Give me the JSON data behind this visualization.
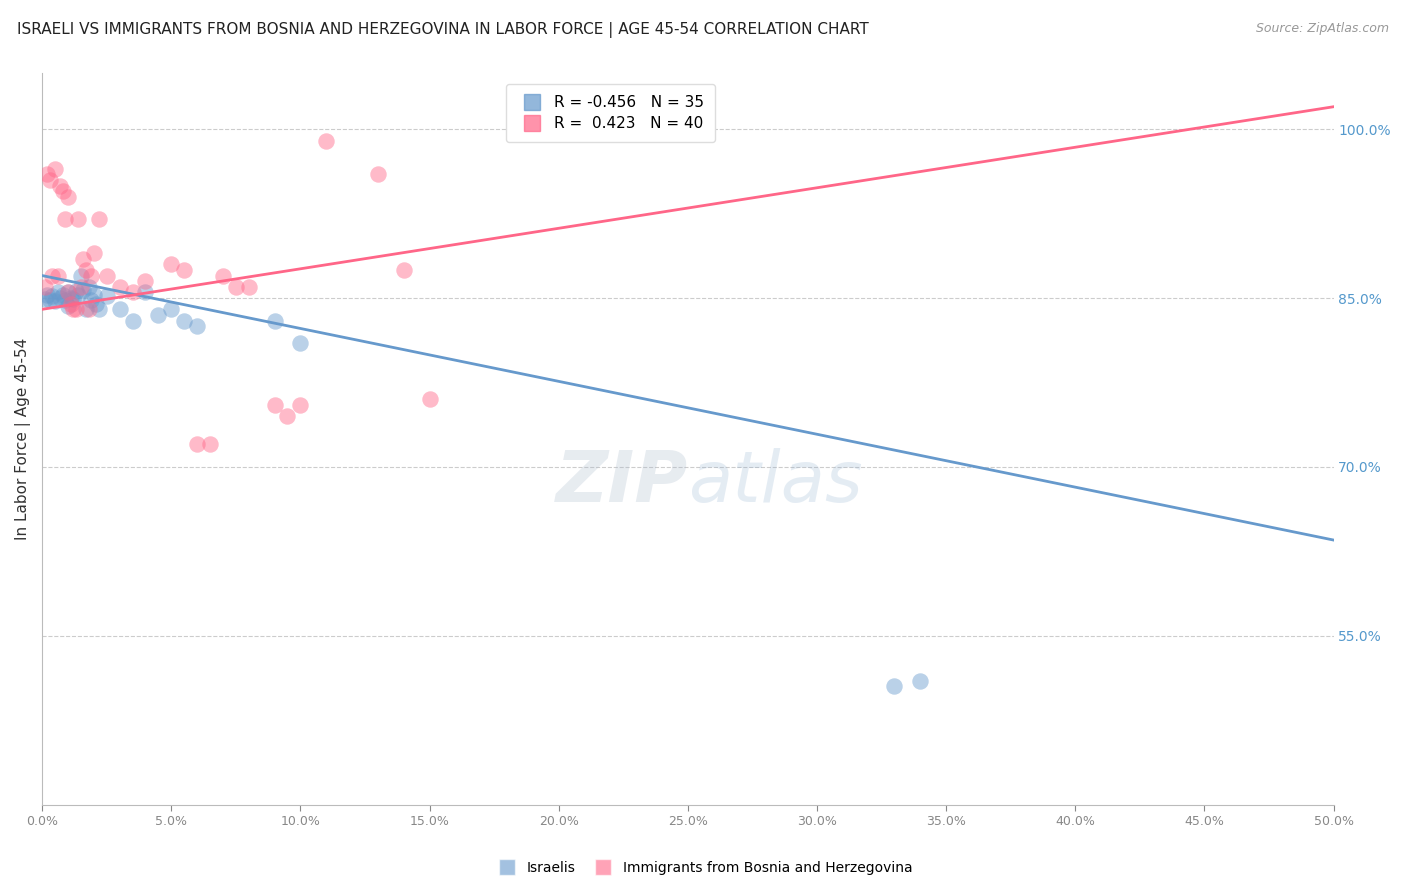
{
  "title": "ISRAELI VS IMMIGRANTS FROM BOSNIA AND HERZEGOVINA IN LABOR FORCE | AGE 45-54 CORRELATION CHART",
  "source": "Source: ZipAtlas.com",
  "ylabel": "In Labor Force | Age 45-54",
  "xlim": [
    0.0,
    0.5
  ],
  "ylim": [
    0.4,
    1.05
  ],
  "yticks": [
    0.55,
    0.7,
    0.85,
    1.0
  ],
  "xticks": [
    0.0,
    0.05,
    0.1,
    0.15,
    0.2,
    0.25,
    0.3,
    0.35,
    0.4,
    0.45,
    0.5
  ],
  "grid_color": "#cccccc",
  "background_color": "#ffffff",
  "israeli_color": "#6699cc",
  "bosnian_color": "#ff6688",
  "israeli_R": -0.456,
  "israeli_N": 35,
  "bosnian_R": 0.423,
  "bosnian_N": 40,
  "watermark_zip": "ZIP",
  "watermark_atlas": "atlas",
  "blue_line_x0": 0.0,
  "blue_line_y0": 0.87,
  "blue_line_x1": 0.5,
  "blue_line_y1": 0.635,
  "pink_line_x0": 0.0,
  "pink_line_y0": 0.84,
  "pink_line_x1": 0.5,
  "pink_line_y1": 1.02,
  "israeli_x": [
    0.001,
    0.002,
    0.003,
    0.004,
    0.005,
    0.006,
    0.007,
    0.008,
    0.009,
    0.01,
    0.01,
    0.011,
    0.012,
    0.013,
    0.014,
    0.015,
    0.016,
    0.017,
    0.018,
    0.019,
    0.02,
    0.021,
    0.022,
    0.025,
    0.03,
    0.035,
    0.04,
    0.045,
    0.05,
    0.055,
    0.06,
    0.09,
    0.1,
    0.33,
    0.34
  ],
  "israeli_y": [
    0.849,
    0.853,
    0.848,
    0.852,
    0.847,
    0.855,
    0.85,
    0.853,
    0.848,
    0.855,
    0.843,
    0.85,
    0.849,
    0.856,
    0.853,
    0.87,
    0.857,
    0.84,
    0.86,
    0.848,
    0.853,
    0.845,
    0.84,
    0.852,
    0.84,
    0.83,
    0.855,
    0.835,
    0.84,
    0.83,
    0.825,
    0.83,
    0.81,
    0.505,
    0.51
  ],
  "bosnian_x": [
    0.001,
    0.002,
    0.003,
    0.004,
    0.005,
    0.006,
    0.007,
    0.008,
    0.009,
    0.01,
    0.01,
    0.011,
    0.012,
    0.013,
    0.014,
    0.015,
    0.016,
    0.017,
    0.018,
    0.019,
    0.02,
    0.022,
    0.025,
    0.03,
    0.035,
    0.04,
    0.05,
    0.055,
    0.06,
    0.065,
    0.07,
    0.075,
    0.08,
    0.09,
    0.095,
    0.1,
    0.11,
    0.13,
    0.14,
    0.15
  ],
  "bosnian_y": [
    0.86,
    0.96,
    0.955,
    0.87,
    0.965,
    0.87,
    0.95,
    0.945,
    0.92,
    0.94,
    0.855,
    0.845,
    0.84,
    0.84,
    0.92,
    0.86,
    0.885,
    0.875,
    0.84,
    0.87,
    0.89,
    0.92,
    0.87,
    0.86,
    0.855,
    0.865,
    0.88,
    0.875,
    0.72,
    0.72,
    0.87,
    0.86,
    0.86,
    0.755,
    0.745,
    0.755,
    0.99,
    0.96,
    0.875,
    0.76
  ]
}
